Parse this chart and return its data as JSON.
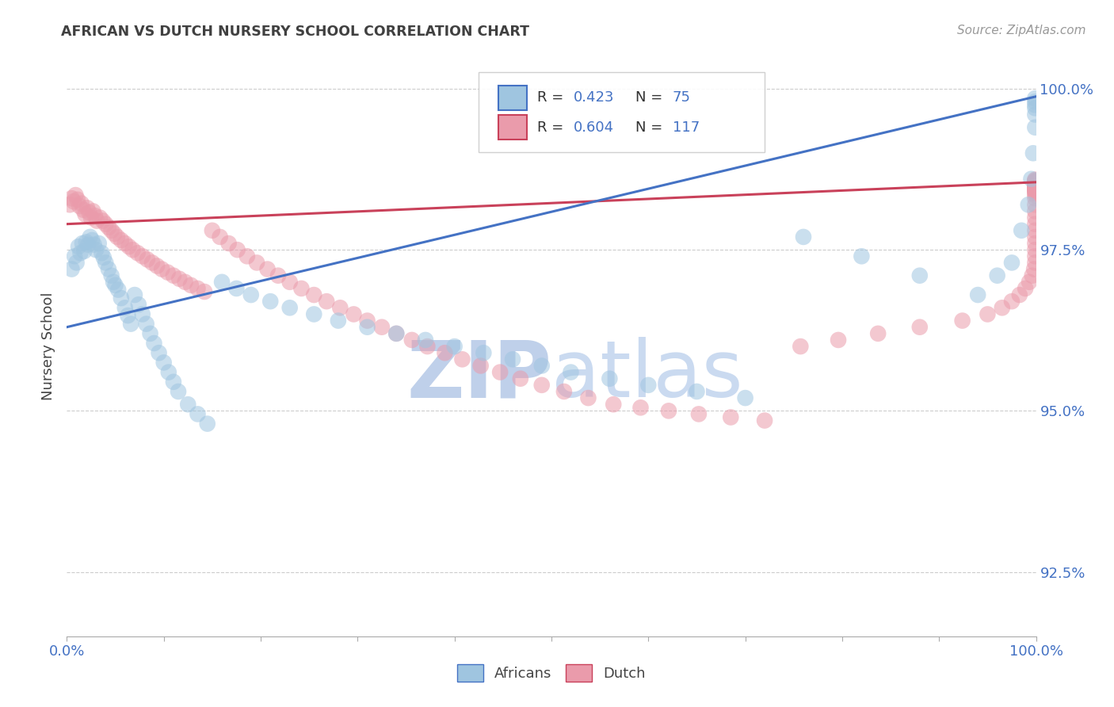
{
  "title": "AFRICAN VS DUTCH NURSERY SCHOOL CORRELATION CHART",
  "source": "Source: ZipAtlas.com",
  "ylabel": "Nursery School",
  "african_R": 0.423,
  "african_N": 75,
  "dutch_R": 0.604,
  "dutch_N": 117,
  "african_color": "#9FC5E0",
  "dutch_color": "#EA9BAB",
  "african_line_color": "#4472C4",
  "dutch_line_color": "#C9415A",
  "background_color": "#FFFFFF",
  "grid_color": "#CCCCCC",
  "title_color": "#404040",
  "axis_label_color": "#444444",
  "ytick_color": "#4472C4",
  "xtick_color": "#4472C4",
  "source_color": "#999999",
  "watermark_zip_color": "#BFD0EA",
  "watermark_atlas_color": "#CADAF0",
  "legend_bg": "#FFFFFF",
  "legend_border": "#CCCCCC",
  "ylim_low": 0.915,
  "ylim_high": 1.005,
  "xlim_low": 0.0,
  "xlim_high": 1.0,
  "yticks": [
    0.925,
    0.95,
    0.975,
    1.0
  ],
  "ytick_labels": [
    "92.5%",
    "95.0%",
    "97.5%",
    "100.0%"
  ],
  "african_trend_x": [
    0.0,
    1.0
  ],
  "african_trend_y": [
    0.963,
    0.9988
  ],
  "dutch_trend_x": [
    0.0,
    1.0
  ],
  "dutch_trend_y": [
    0.979,
    0.9855
  ],
  "african_x": [
    0.005,
    0.008,
    0.01,
    0.012,
    0.014,
    0.016,
    0.018,
    0.02,
    0.022,
    0.024,
    0.026,
    0.028,
    0.03,
    0.033,
    0.036,
    0.038,
    0.04,
    0.043,
    0.046,
    0.048,
    0.05,
    0.053,
    0.056,
    0.06,
    0.063,
    0.066,
    0.07,
    0.074,
    0.078,
    0.082,
    0.086,
    0.09,
    0.095,
    0.1,
    0.105,
    0.11,
    0.115,
    0.125,
    0.135,
    0.145,
    0.16,
    0.175,
    0.19,
    0.21,
    0.23,
    0.255,
    0.28,
    0.31,
    0.34,
    0.37,
    0.4,
    0.43,
    0.46,
    0.49,
    0.52,
    0.56,
    0.6,
    0.65,
    0.7,
    0.76,
    0.82,
    0.88,
    0.94,
    0.96,
    0.975,
    0.985,
    0.992,
    0.995,
    0.997,
    0.999,
    0.999,
    0.999,
    0.999,
    0.999,
    0.999
  ],
  "african_y": [
    0.972,
    0.974,
    0.973,
    0.9755,
    0.9745,
    0.976,
    0.9748,
    0.9762,
    0.9758,
    0.977,
    0.9765,
    0.9758,
    0.975,
    0.976,
    0.9745,
    0.9738,
    0.973,
    0.972,
    0.971,
    0.97,
    0.9695,
    0.9688,
    0.9675,
    0.966,
    0.9648,
    0.9635,
    0.968,
    0.9665,
    0.965,
    0.9635,
    0.962,
    0.9605,
    0.959,
    0.9575,
    0.956,
    0.9545,
    0.953,
    0.951,
    0.9495,
    0.948,
    0.97,
    0.969,
    0.968,
    0.967,
    0.966,
    0.965,
    0.964,
    0.963,
    0.962,
    0.961,
    0.96,
    0.959,
    0.958,
    0.957,
    0.956,
    0.955,
    0.954,
    0.953,
    0.952,
    0.977,
    0.974,
    0.971,
    0.968,
    0.971,
    0.973,
    0.978,
    0.982,
    0.986,
    0.99,
    0.994,
    0.996,
    0.997,
    0.9975,
    0.998,
    0.9985
  ],
  "dutch_x": [
    0.003,
    0.005,
    0.007,
    0.009,
    0.011,
    0.013,
    0.015,
    0.017,
    0.019,
    0.021,
    0.023,
    0.025,
    0.027,
    0.029,
    0.031,
    0.034,
    0.037,
    0.04,
    0.043,
    0.046,
    0.049,
    0.052,
    0.056,
    0.06,
    0.064,
    0.068,
    0.073,
    0.078,
    0.083,
    0.088,
    0.093,
    0.098,
    0.104,
    0.11,
    0.116,
    0.122,
    0.128,
    0.135,
    0.142,
    0.15,
    0.158,
    0.167,
    0.176,
    0.186,
    0.196,
    0.207,
    0.218,
    0.23,
    0.242,
    0.255,
    0.268,
    0.282,
    0.296,
    0.31,
    0.325,
    0.34,
    0.356,
    0.372,
    0.39,
    0.408,
    0.427,
    0.447,
    0.468,
    0.49,
    0.513,
    0.538,
    0.564,
    0.592,
    0.621,
    0.652,
    0.685,
    0.72,
    0.757,
    0.796,
    0.837,
    0.88,
    0.924,
    0.95,
    0.965,
    0.975,
    0.983,
    0.989,
    0.993,
    0.996,
    0.998,
    0.999,
    0.999,
    0.999,
    0.999,
    0.999,
    0.999,
    0.999,
    0.999,
    0.999,
    0.999,
    0.999,
    0.999,
    0.999,
    0.999,
    0.999,
    0.999,
    0.999,
    0.999,
    0.999,
    0.999,
    0.999,
    0.999,
    0.999,
    0.999,
    0.999,
    0.999,
    0.999,
    0.999,
    0.999,
    0.999,
    0.999,
    0.999
  ],
  "dutch_y": [
    0.982,
    0.983,
    0.9825,
    0.9835,
    0.9828,
    0.9818,
    0.9822,
    0.9812,
    0.9805,
    0.9815,
    0.9808,
    0.98,
    0.981,
    0.9803,
    0.9795,
    0.98,
    0.9795,
    0.979,
    0.9785,
    0.978,
    0.9775,
    0.977,
    0.9765,
    0.976,
    0.9755,
    0.975,
    0.9745,
    0.974,
    0.9735,
    0.973,
    0.9725,
    0.972,
    0.9715,
    0.971,
    0.9705,
    0.97,
    0.9695,
    0.969,
    0.9685,
    0.978,
    0.977,
    0.976,
    0.975,
    0.974,
    0.973,
    0.972,
    0.971,
    0.97,
    0.969,
    0.968,
    0.967,
    0.966,
    0.965,
    0.964,
    0.963,
    0.962,
    0.961,
    0.96,
    0.959,
    0.958,
    0.957,
    0.956,
    0.955,
    0.954,
    0.953,
    0.952,
    0.951,
    0.9505,
    0.95,
    0.9495,
    0.949,
    0.9485,
    0.96,
    0.961,
    0.962,
    0.963,
    0.964,
    0.965,
    0.966,
    0.967,
    0.968,
    0.969,
    0.97,
    0.971,
    0.972,
    0.973,
    0.974,
    0.975,
    0.976,
    0.977,
    0.978,
    0.979,
    0.98,
    0.981,
    0.982,
    0.983,
    0.9835,
    0.9838,
    0.984,
    0.9842,
    0.9843,
    0.9844,
    0.9845,
    0.9846,
    0.9847,
    0.9848,
    0.9849,
    0.985,
    0.9851,
    0.9852,
    0.9853,
    0.9854,
    0.9855,
    0.9856,
    0.9857,
    0.9858,
    0.9859
  ]
}
